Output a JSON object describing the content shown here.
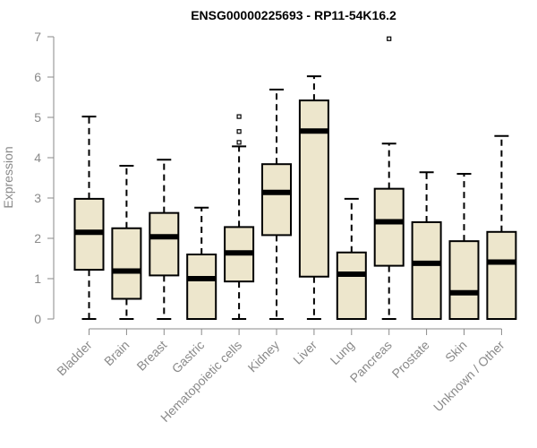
{
  "chart_data": {
    "type": "boxplot",
    "title": "ENSG00000225693 - RP11-54K16.2",
    "ylabel": "Expression",
    "xlabel": "",
    "ylim": [
      0,
      7
    ],
    "yticks": [
      "0",
      "1",
      "2",
      "3",
      "4",
      "5",
      "6",
      "7"
    ],
    "categories": [
      "Bladder",
      "Brain",
      "Breast",
      "Gastric",
      "Hematopoietic cells",
      "Kidney",
      "Liver",
      "Lung",
      "Pancreas",
      "Prostate",
      "Skin",
      "Unknown / Other"
    ],
    "boxes": [
      {
        "min": 0.0,
        "q1": 1.22,
        "median": 2.15,
        "q3": 2.98,
        "max": 5.02,
        "outliers": []
      },
      {
        "min": 0.0,
        "q1": 0.5,
        "median": 1.19,
        "q3": 2.25,
        "max": 3.8,
        "outliers": []
      },
      {
        "min": 0.0,
        "q1": 1.08,
        "median": 2.04,
        "q3": 2.63,
        "max": 3.95,
        "outliers": []
      },
      {
        "min": 0.0,
        "q1": 0.0,
        "median": 1.0,
        "q3": 1.6,
        "max": 2.76,
        "outliers": []
      },
      {
        "min": 0.0,
        "q1": 0.93,
        "median": 1.64,
        "q3": 2.28,
        "max": 4.28,
        "outliers": [
          4.38,
          4.65,
          5.02
        ]
      },
      {
        "min": 0.0,
        "q1": 2.08,
        "median": 3.14,
        "q3": 3.84,
        "max": 5.69,
        "outliers": []
      },
      {
        "min": 0.0,
        "q1": 1.05,
        "median": 4.66,
        "q3": 5.42,
        "max": 6.02,
        "outliers": []
      },
      {
        "min": 0.0,
        "q1": 0.0,
        "median": 1.11,
        "q3": 1.65,
        "max": 2.98,
        "outliers": []
      },
      {
        "min": 0.0,
        "q1": 1.32,
        "median": 2.41,
        "q3": 3.23,
        "max": 4.35,
        "outliers": [
          6.95
        ]
      },
      {
        "min": 0.0,
        "q1": 0.0,
        "median": 1.38,
        "q3": 2.4,
        "max": 3.64,
        "outliers": []
      },
      {
        "min": 0.0,
        "q1": 0.0,
        "median": 0.65,
        "q3": 1.93,
        "max": 3.6,
        "outliers": []
      },
      {
        "min": 0.0,
        "q1": 0.0,
        "median": 1.41,
        "q3": 2.16,
        "max": 4.54,
        "outliers": []
      }
    ],
    "box_fill": "#ede6cc",
    "line_color": "#000000",
    "axis_color": "#8a8a8a",
    "grid": false,
    "legend": "none"
  }
}
